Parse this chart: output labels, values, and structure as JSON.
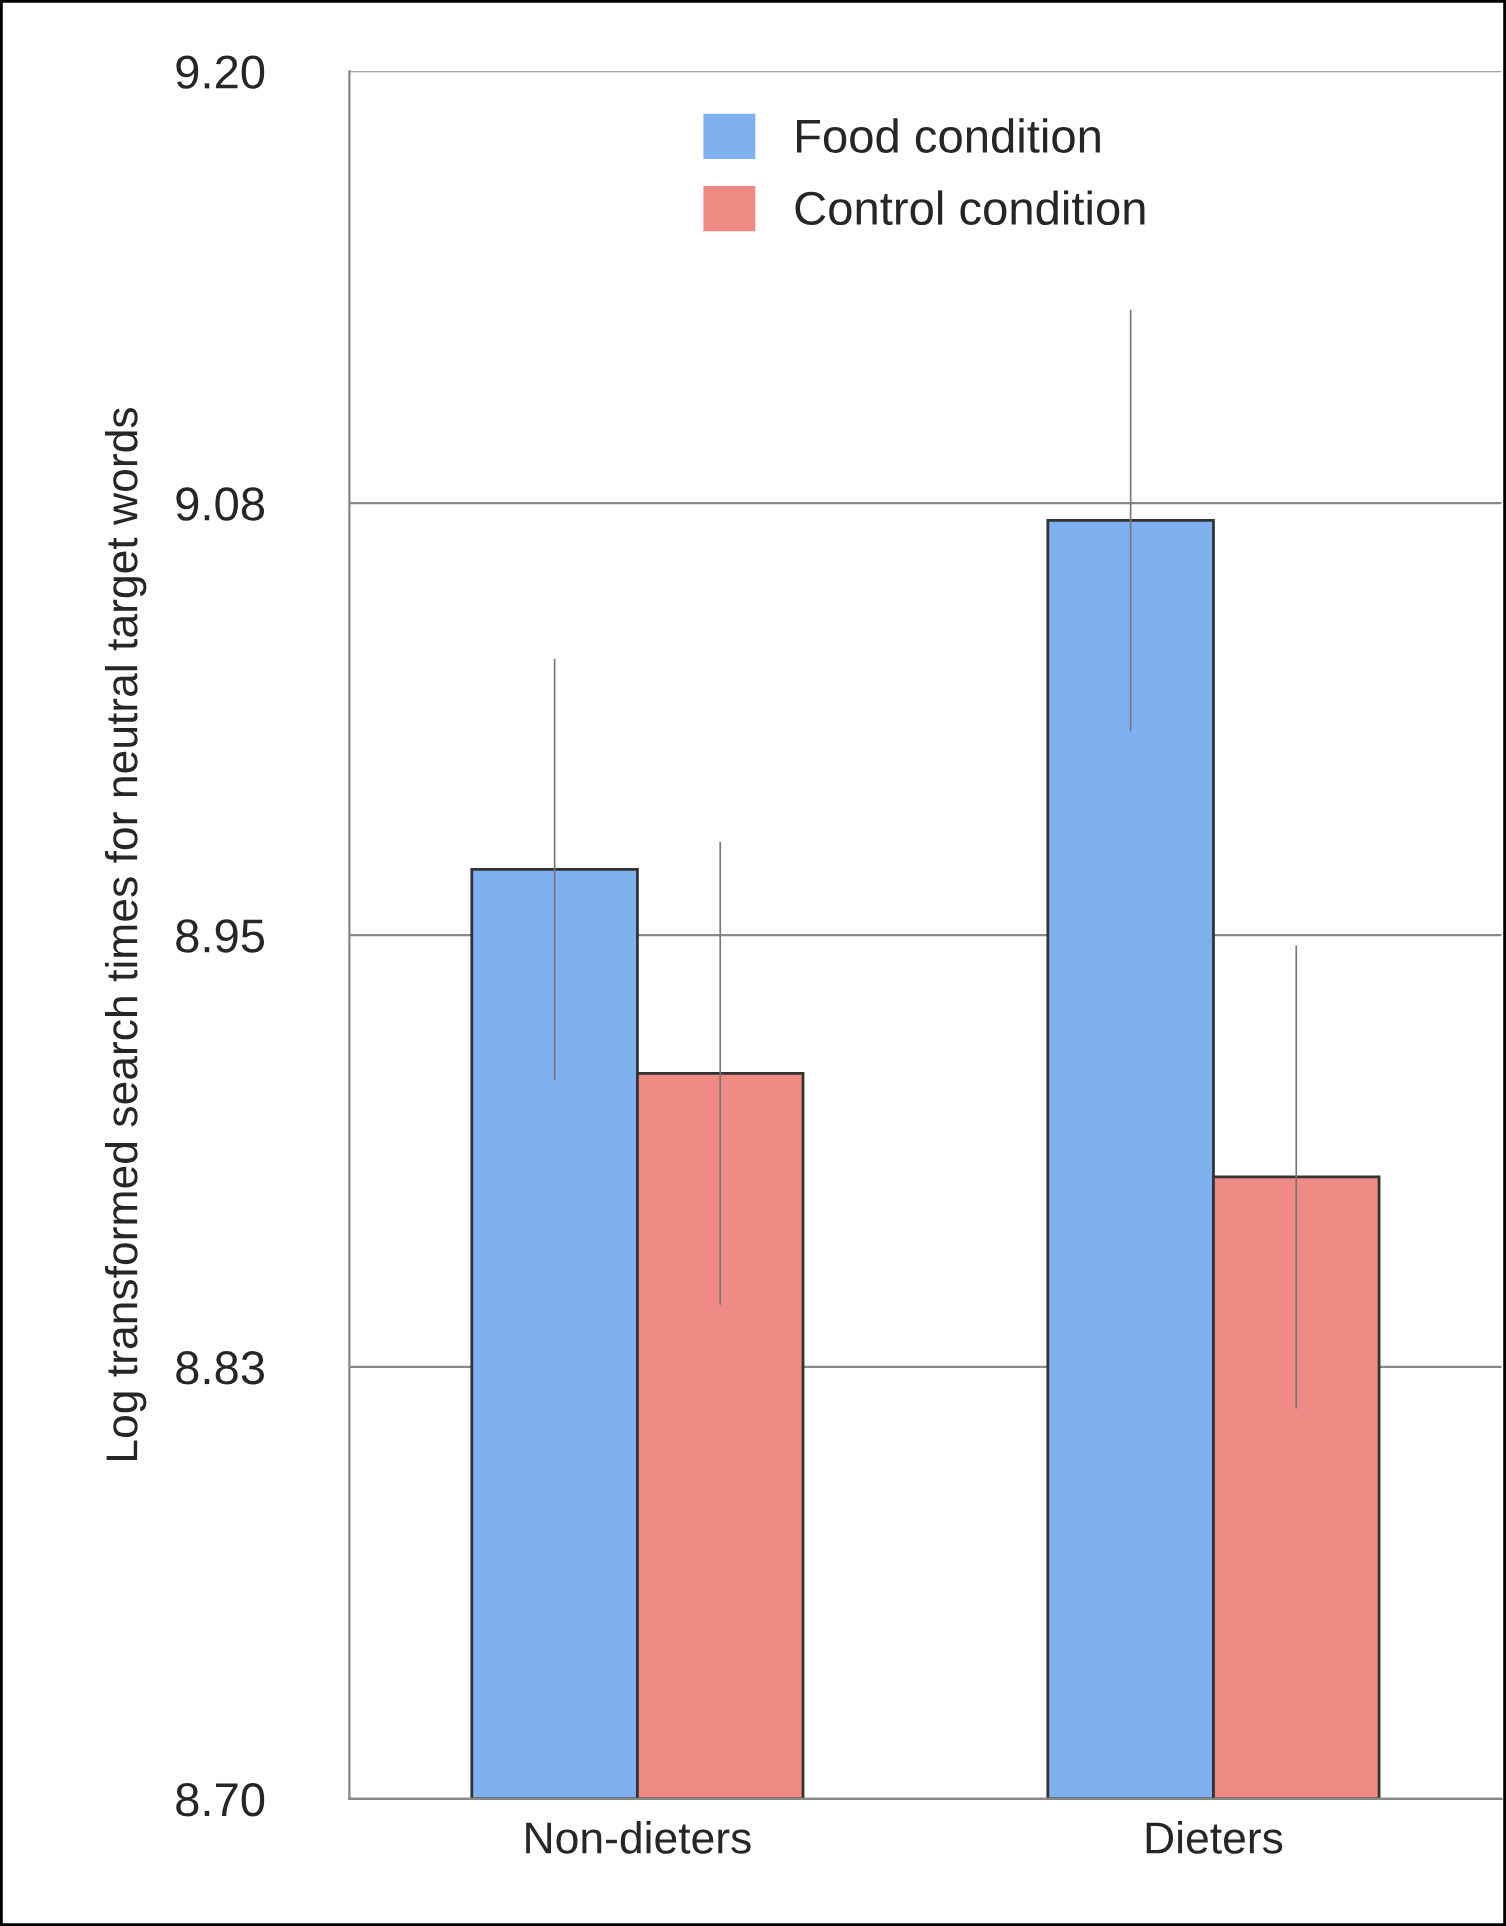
{
  "chart_data": {
    "type": "bar",
    "ylabel": "Log transformed search times for neutral target words",
    "categories": [
      "Non-dieters",
      "Dieters"
    ],
    "series": [
      {
        "name": "Food condition",
        "color": "#7fb0ef",
        "values": [
          8.969,
          9.07
        ],
        "errors": [
          0.061,
          0.061
        ]
      },
      {
        "name": "Control condition",
        "color": "#ef8a84",
        "values": [
          8.91,
          8.88
        ],
        "errors": [
          0.067,
          0.067
        ]
      }
    ],
    "ylim": [
      8.7,
      9.2
    ],
    "yticks": [
      {
        "value": 8.7,
        "label": "8.70"
      },
      {
        "value": 8.825,
        "label": "8.83"
      },
      {
        "value": 8.95,
        "label": "8.95"
      },
      {
        "value": 9.075,
        "label": "9.08"
      },
      {
        "value": 9.2,
        "label": "9.20"
      }
    ],
    "grid": "y",
    "legend": "top"
  }
}
